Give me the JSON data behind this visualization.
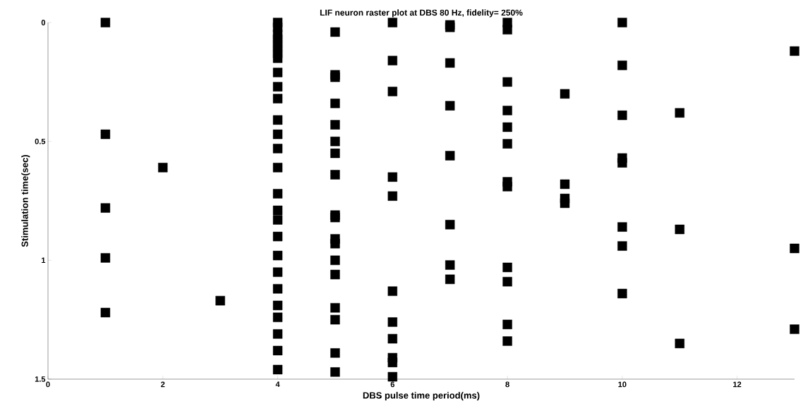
{
  "chart_data": {
    "type": "scatter",
    "title": "LIF neuron raster plot at DBS 80 Hz, fidelity= 250%",
    "xlabel": "DBS pulse time period(ms)",
    "ylabel": "Stimulation time(sec)",
    "marker": "square",
    "grid": false,
    "xlim": [
      0,
      13
    ],
    "ylim": [
      1.5,
      0
    ],
    "xticks": [
      0,
      2,
      4,
      6,
      8,
      10,
      12
    ],
    "yticks": [
      0,
      0.5,
      1,
      1.5
    ],
    "series": [
      {
        "color": "#000000",
        "x": [
          1,
          1,
          1,
          1,
          1,
          2,
          3,
          4,
          4,
          4,
          4,
          4,
          4,
          4,
          4,
          4,
          4,
          4,
          4,
          4,
          4,
          4,
          4,
          4,
          4,
          4,
          4,
          4,
          4,
          4,
          4,
          4,
          4,
          4,
          5,
          5,
          5,
          5,
          5,
          5,
          5,
          5,
          5,
          5,
          5,
          5,
          5,
          5,
          5,
          5,
          5,
          5,
          6,
          6,
          6,
          6,
          6,
          6,
          6,
          6,
          6,
          6,
          6,
          7,
          7,
          7,
          7,
          7,
          7,
          7,
          7,
          8,
          8,
          8,
          8,
          8,
          8,
          8,
          8,
          8,
          8,
          8,
          8,
          9,
          9,
          9,
          9,
          10,
          10,
          10,
          10,
          10,
          10,
          10,
          10,
          11,
          11,
          11,
          13,
          13,
          13
        ],
        "values": [
          0,
          0.47,
          0.78,
          0.99,
          1.22,
          0.61,
          1.17,
          0,
          0.02,
          0.05,
          0.07,
          0.09,
          0.11,
          0.13,
          0.15,
          0.21,
          0.27,
          0.32,
          0.41,
          0.47,
          0.53,
          0.61,
          0.72,
          0.79,
          0.83,
          0.9,
          0.98,
          1.05,
          1.12,
          1.19,
          1.24,
          1.31,
          1.38,
          1.46,
          0.04,
          0.22,
          0.23,
          0.34,
          0.43,
          0.5,
          0.55,
          0.64,
          0.81,
          0.82,
          0.91,
          0.93,
          1.0,
          1.06,
          1.2,
          1.25,
          1.39,
          1.47,
          0,
          0.16,
          0.29,
          0.65,
          0.73,
          1.13,
          1.26,
          1.33,
          1.41,
          1.43,
          1.49,
          0.01,
          0.02,
          0.17,
          0.35,
          0.56,
          0.85,
          1.02,
          1.08,
          0,
          0.03,
          0.25,
          0.37,
          0.44,
          0.51,
          0.67,
          0.69,
          1.03,
          1.09,
          1.27,
          1.34,
          0.3,
          0.68,
          0.74,
          0.76,
          0,
          0.18,
          0.39,
          0.57,
          0.59,
          0.86,
          0.94,
          1.14,
          0.38,
          0.87,
          1.35,
          0.12,
          0.95,
          1.29
        ]
      }
    ]
  }
}
